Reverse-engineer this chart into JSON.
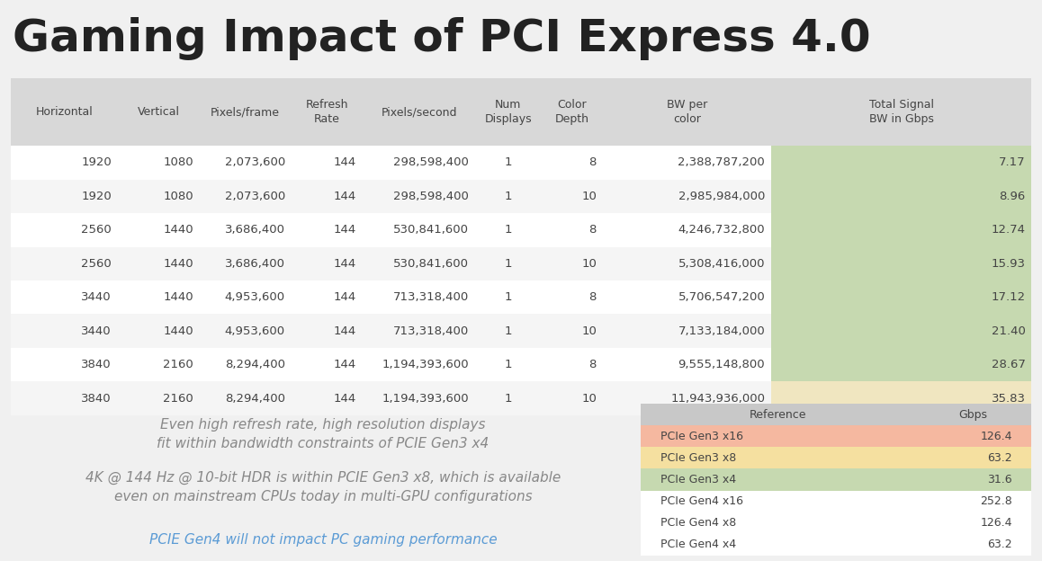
{
  "title": "Gaming Impact of PCI Express 4.0",
  "title_fontsize": 36,
  "bg_color": "#f0f0f0",
  "main_table": {
    "headers": [
      "Horizontal",
      "Vertical",
      "Pixels/frame",
      "Refresh\nRate",
      "Pixels/second",
      "Num\nDisplays",
      "Color\nDepth",
      "BW per\ncolor",
      "Total Signal\nBW in Gbps"
    ],
    "rows": [
      [
        "1920",
        "1080",
        "2,073,600",
        "144",
        "298,598,400",
        "1",
        "8",
        "2,388,787,200",
        "7.17"
      ],
      [
        "1920",
        "1080",
        "2,073,600",
        "144",
        "298,598,400",
        "1",
        "10",
        "2,985,984,000",
        "8.96"
      ],
      [
        "2560",
        "1440",
        "3,686,400",
        "144",
        "530,841,600",
        "1",
        "8",
        "4,246,732,800",
        "12.74"
      ],
      [
        "2560",
        "1440",
        "3,686,400",
        "144",
        "530,841,600",
        "1",
        "10",
        "5,308,416,000",
        "15.93"
      ],
      [
        "3440",
        "1440",
        "4,953,600",
        "144",
        "713,318,400",
        "1",
        "8",
        "5,706,547,200",
        "17.12"
      ],
      [
        "3440",
        "1440",
        "4,953,600",
        "144",
        "713,318,400",
        "1",
        "10",
        "7,133,184,000",
        "21.40"
      ],
      [
        "3840",
        "2160",
        "8,294,400",
        "144",
        "1,194,393,600",
        "1",
        "8",
        "9,555,148,800",
        "28.67"
      ],
      [
        "3840",
        "2160",
        "8,294,400",
        "144",
        "1,194,393,600",
        "1",
        "10",
        "11,943,936,000",
        "35.83"
      ]
    ],
    "last_col_colors": [
      "#c6d9b0",
      "#c6d9b0",
      "#c6d9b0",
      "#c6d9b0",
      "#c6d9b0",
      "#c6d9b0",
      "#c6d9b0",
      "#f0e6c0"
    ],
    "row_bg_colors": [
      "#ffffff",
      "#f5f5f5",
      "#ffffff",
      "#f5f5f5",
      "#ffffff",
      "#f5f5f5",
      "#ffffff",
      "#f5f5f5"
    ],
    "header_bg": "#d8d8d8",
    "text_color": "#444444"
  },
  "ref_table": {
    "headers": [
      "Reference",
      "Gbps"
    ],
    "rows": [
      [
        "PCIe Gen3 x16",
        "126.4"
      ],
      [
        "PCIe Gen3 x8",
        "63.2"
      ],
      [
        "PCIe Gen3 x4",
        "31.6"
      ],
      [
        "PCIe Gen4 x16",
        "252.8"
      ],
      [
        "PCIe Gen4 x8",
        "126.4"
      ],
      [
        "PCIe Gen4 x4",
        "63.2"
      ]
    ],
    "row_colors": [
      "#f5b8a0",
      "#f5e0a0",
      "#c6d9b0",
      "#ffffff",
      "#ffffff",
      "#ffffff"
    ],
    "header_bg": "#c8c8c8"
  },
  "annotations": [
    {
      "text": "Even high refresh rate, high resolution displays\nfit within bandwidth constraints of PCIE Gen3 x4",
      "color": "#888888",
      "fontsize": 11,
      "style": "italic"
    },
    {
      "text": "4K @ 144 Hz @ 10-bit HDR is within PCIE Gen3 x8, which is available\neven on mainstream CPUs today in multi-GPU configurations",
      "color": "#888888",
      "fontsize": 11,
      "style": "italic"
    },
    {
      "text": "PCIE Gen4 will not impact PC gaming performance",
      "color": "#5b9bd5",
      "fontsize": 11,
      "style": "italic"
    }
  ]
}
